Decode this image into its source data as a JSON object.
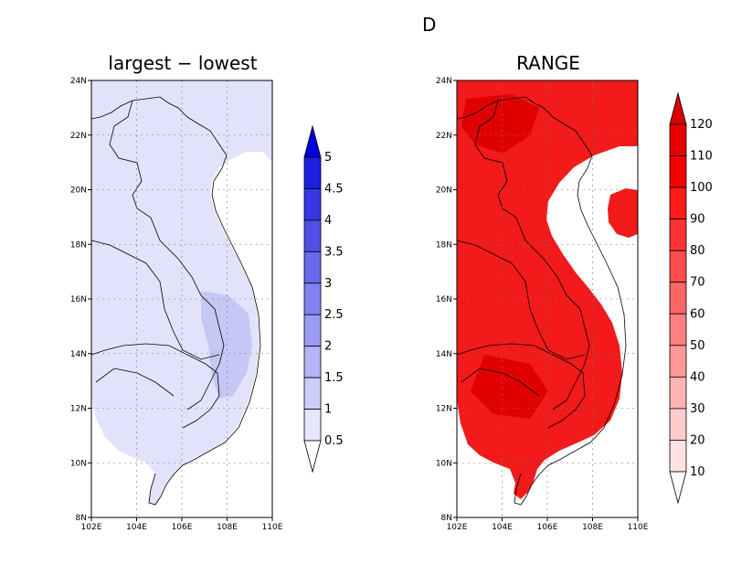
{
  "header": {
    "top_label": "D"
  },
  "panels": [
    {
      "title": "largest − lowest",
      "fill_color": "#e2e3fb",
      "darker_color": "#c5c8f4",
      "x_ticks": [
        "102E",
        "104E",
        "106E",
        "108E",
        "110E"
      ],
      "y_ticks": [
        "24N",
        "22N",
        "20N",
        "18N",
        "16N",
        "14N",
        "12N",
        "10N",
        "8N"
      ],
      "colorbar": {
        "labels": [
          "0.5",
          "1",
          "1.5",
          "2",
          "2.5",
          "3",
          "3.5",
          "4",
          "4.5",
          "5"
        ],
        "colors": [
          "#ffffff",
          "#e6e6fc",
          "#cdcdf9",
          "#b4b4f6",
          "#9b9bf3",
          "#8282f0",
          "#6969ec",
          "#5050e8",
          "#3737e4",
          "#1e1ee0",
          "#0000d8"
        ]
      }
    },
    {
      "title": "RANGE",
      "fill_color": "#f21a1a",
      "darker_color": "#e00000",
      "x_ticks": [
        "102E",
        "104E",
        "106E",
        "108E",
        "110E"
      ],
      "y_ticks": [
        "24N",
        "22N",
        "20N",
        "18N",
        "16N",
        "14N",
        "12N",
        "10N",
        "8N"
      ],
      "colorbar": {
        "labels": [
          "10",
          "20",
          "30",
          "40",
          "50",
          "60",
          "70",
          "80",
          "90",
          "100",
          "110",
          "120"
        ],
        "colors": [
          "#ffffff",
          "#ffe2e2",
          "#ffcccc",
          "#ffb3b3",
          "#ff9999",
          "#ff8080",
          "#ff6666",
          "#ff4d4d",
          "#ff3333",
          "#ff1a1a",
          "#f50000",
          "#e80000",
          "#d80000"
        ]
      }
    }
  ]
}
